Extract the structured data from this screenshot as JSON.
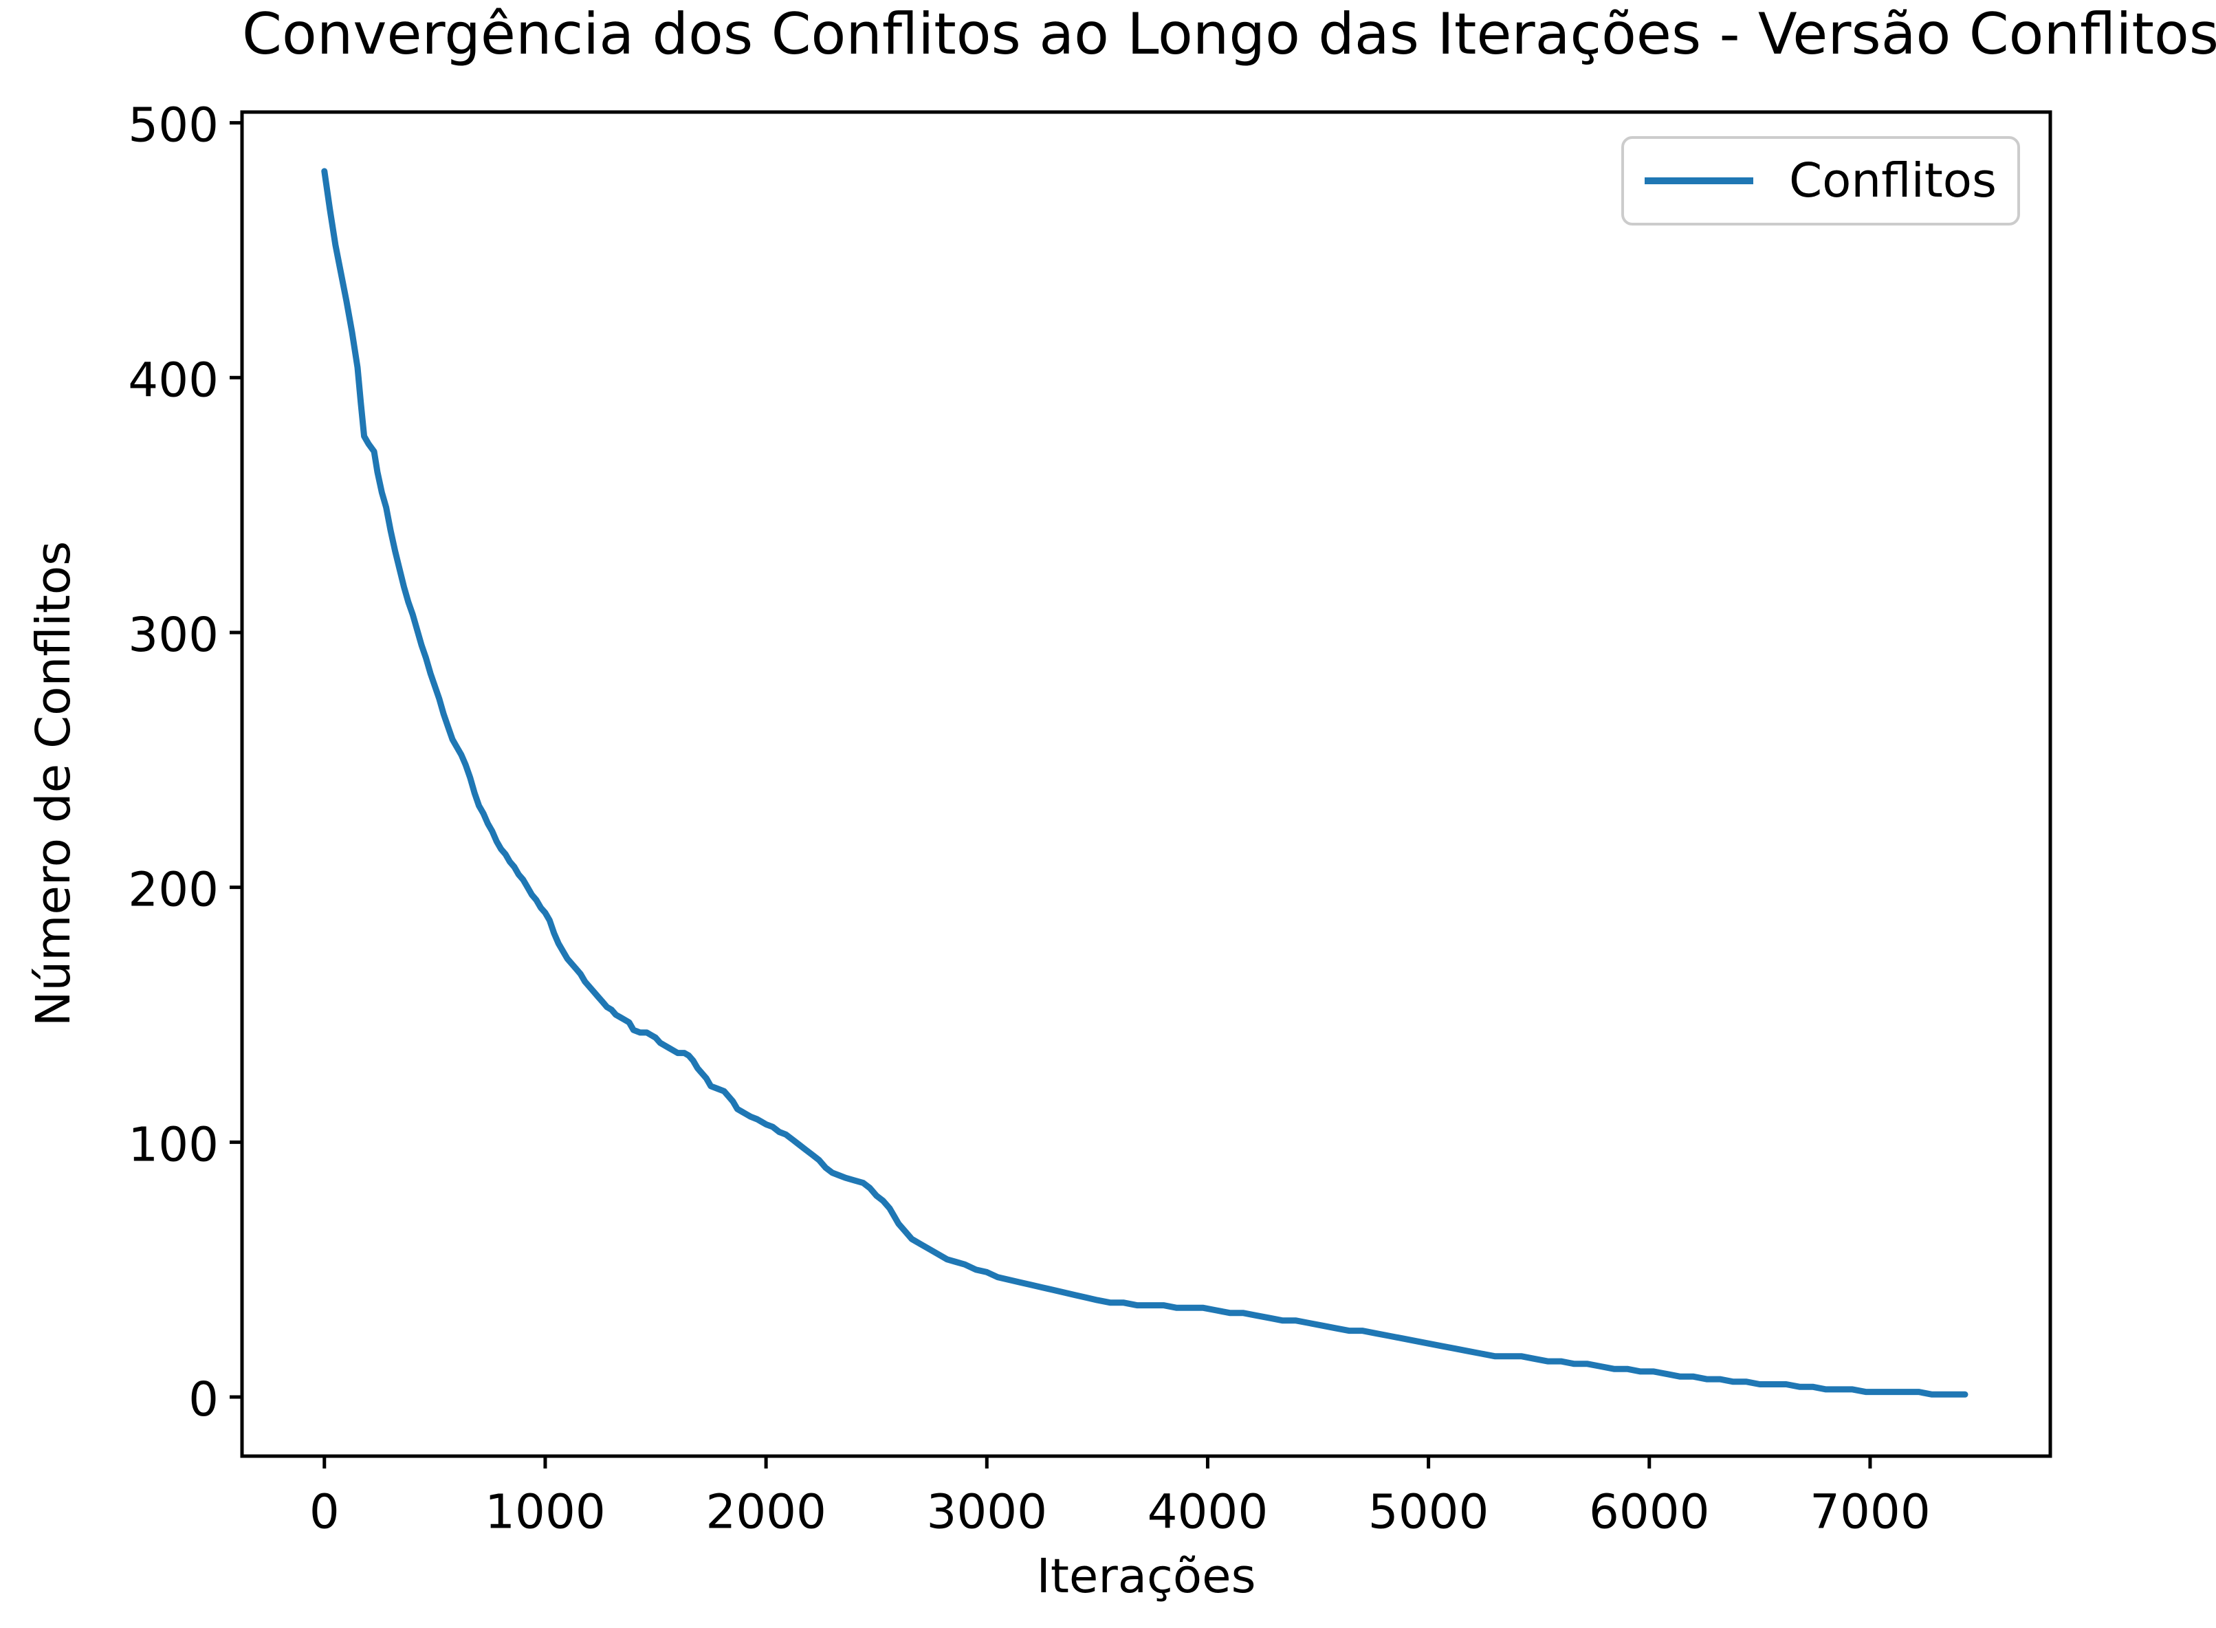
{
  "figure": {
    "background": "#ffffff"
  },
  "chart_data": {
    "type": "line",
    "title": "Convergência dos Conflitos ao Longo das Iterações - Versão Conflitos",
    "xlabel": "Iterações",
    "ylabel": "Número de Conflitos",
    "grid": false,
    "axis_color": "#000000",
    "xlim": [
      -373,
      7816
    ],
    "ylim": [
      -23.2,
      504.2
    ],
    "xticks": [
      0,
      1000,
      2000,
      3000,
      4000,
      5000,
      6000,
      7000
    ],
    "yticks": [
      0,
      100,
      200,
      300,
      400,
      500
    ],
    "legend": {
      "position": "upper right",
      "entries": [
        {
          "label": "Conflitos",
          "color": "#1f77b4"
        }
      ]
    },
    "series": [
      {
        "name": "Conflitos",
        "color": "#1f77b4",
        "line_width": 9,
        "points": [
          [
            0,
            481
          ],
          [
            25,
            466
          ],
          [
            50,
            452
          ],
          [
            75,
            441
          ],
          [
            100,
            430
          ],
          [
            125,
            418
          ],
          [
            150,
            404
          ],
          [
            165,
            390
          ],
          [
            180,
            377
          ],
          [
            200,
            374
          ],
          [
            225,
            371
          ],
          [
            240,
            363
          ],
          [
            260,
            355
          ],
          [
            280,
            349
          ],
          [
            300,
            340
          ],
          [
            320,
            332
          ],
          [
            340,
            325
          ],
          [
            360,
            318
          ],
          [
            380,
            312
          ],
          [
            400,
            307
          ],
          [
            420,
            301
          ],
          [
            440,
            295
          ],
          [
            460,
            290
          ],
          [
            480,
            284
          ],
          [
            500,
            279
          ],
          [
            520,
            274
          ],
          [
            540,
            268
          ],
          [
            560,
            263
          ],
          [
            580,
            258
          ],
          [
            600,
            255
          ],
          [
            620,
            252
          ],
          [
            640,
            248
          ],
          [
            660,
            243
          ],
          [
            680,
            237
          ],
          [
            700,
            232
          ],
          [
            720,
            229
          ],
          [
            740,
            225
          ],
          [
            760,
            222
          ],
          [
            780,
            218
          ],
          [
            800,
            215
          ],
          [
            820,
            213
          ],
          [
            840,
            210
          ],
          [
            860,
            208
          ],
          [
            880,
            205
          ],
          [
            900,
            203
          ],
          [
            920,
            200
          ],
          [
            940,
            197
          ],
          [
            960,
            195
          ],
          [
            980,
            192
          ],
          [
            1000,
            190
          ],
          [
            1020,
            187
          ],
          [
            1040,
            182
          ],
          [
            1060,
            178
          ],
          [
            1080,
            175
          ],
          [
            1100,
            172
          ],
          [
            1120,
            170
          ],
          [
            1140,
            168
          ],
          [
            1160,
            166
          ],
          [
            1180,
            163
          ],
          [
            1200,
            161
          ],
          [
            1220,
            159
          ],
          [
            1240,
            157
          ],
          [
            1260,
            155
          ],
          [
            1280,
            153
          ],
          [
            1300,
            152
          ],
          [
            1320,
            150
          ],
          [
            1340,
            149
          ],
          [
            1360,
            148
          ],
          [
            1380,
            147
          ],
          [
            1400,
            144
          ],
          [
            1430,
            143
          ],
          [
            1460,
            143
          ],
          [
            1480,
            142
          ],
          [
            1500,
            141
          ],
          [
            1520,
            139
          ],
          [
            1540,
            138
          ],
          [
            1560,
            137
          ],
          [
            1580,
            136
          ],
          [
            1600,
            135
          ],
          [
            1630,
            135
          ],
          [
            1650,
            134
          ],
          [
            1670,
            132
          ],
          [
            1690,
            129
          ],
          [
            1710,
            127
          ],
          [
            1730,
            125
          ],
          [
            1750,
            122
          ],
          [
            1780,
            121
          ],
          [
            1810,
            120
          ],
          [
            1830,
            118
          ],
          [
            1850,
            116
          ],
          [
            1870,
            113
          ],
          [
            1890,
            112
          ],
          [
            1910,
            111
          ],
          [
            1930,
            110
          ],
          [
            1960,
            109
          ],
          [
            1980,
            108
          ],
          [
            2000,
            107
          ],
          [
            2030,
            106
          ],
          [
            2060,
            104
          ],
          [
            2090,
            103
          ],
          [
            2120,
            101
          ],
          [
            2150,
            99
          ],
          [
            2180,
            97
          ],
          [
            2210,
            95
          ],
          [
            2240,
            93
          ],
          [
            2270,
            90
          ],
          [
            2300,
            88
          ],
          [
            2330,
            87
          ],
          [
            2360,
            86
          ],
          [
            2400,
            85
          ],
          [
            2440,
            84
          ],
          [
            2470,
            82
          ],
          [
            2500,
            79
          ],
          [
            2530,
            77
          ],
          [
            2560,
            74
          ],
          [
            2580,
            71
          ],
          [
            2600,
            68
          ],
          [
            2630,
            65
          ],
          [
            2660,
            62
          ],
          [
            2700,
            60
          ],
          [
            2740,
            58
          ],
          [
            2780,
            56
          ],
          [
            2820,
            54
          ],
          [
            2860,
            53
          ],
          [
            2900,
            52
          ],
          [
            2950,
            50
          ],
          [
            3000,
            49
          ],
          [
            3050,
            47
          ],
          [
            3100,
            46
          ],
          [
            3150,
            45
          ],
          [
            3200,
            44
          ],
          [
            3250,
            43
          ],
          [
            3300,
            42
          ],
          [
            3350,
            41
          ],
          [
            3400,
            40
          ],
          [
            3450,
            39
          ],
          [
            3500,
            38
          ],
          [
            3560,
            37
          ],
          [
            3620,
            37
          ],
          [
            3680,
            36
          ],
          [
            3740,
            36
          ],
          [
            3800,
            36
          ],
          [
            3860,
            35
          ],
          [
            3920,
            35
          ],
          [
            3980,
            35
          ],
          [
            4040,
            34
          ],
          [
            4100,
            33
          ],
          [
            4160,
            33
          ],
          [
            4220,
            32
          ],
          [
            4280,
            31
          ],
          [
            4340,
            30
          ],
          [
            4400,
            30
          ],
          [
            4460,
            29
          ],
          [
            4520,
            28
          ],
          [
            4580,
            27
          ],
          [
            4640,
            26
          ],
          [
            4700,
            26
          ],
          [
            4760,
            25
          ],
          [
            4820,
            24
          ],
          [
            4880,
            23
          ],
          [
            4940,
            22
          ],
          [
            5000,
            21
          ],
          [
            5060,
            20
          ],
          [
            5120,
            19
          ],
          [
            5180,
            18
          ],
          [
            5240,
            17
          ],
          [
            5300,
            16
          ],
          [
            5360,
            16
          ],
          [
            5420,
            16
          ],
          [
            5480,
            15
          ],
          [
            5540,
            14
          ],
          [
            5600,
            14
          ],
          [
            5660,
            13
          ],
          [
            5720,
            13
          ],
          [
            5780,
            12
          ],
          [
            5840,
            11
          ],
          [
            5900,
            11
          ],
          [
            5960,
            10
          ],
          [
            6020,
            10
          ],
          [
            6080,
            9
          ],
          [
            6140,
            8
          ],
          [
            6200,
            8
          ],
          [
            6260,
            7
          ],
          [
            6320,
            7
          ],
          [
            6380,
            6
          ],
          [
            6440,
            6
          ],
          [
            6500,
            5
          ],
          [
            6560,
            5
          ],
          [
            6620,
            5
          ],
          [
            6680,
            4
          ],
          [
            6740,
            4
          ],
          [
            6800,
            3
          ],
          [
            6860,
            3
          ],
          [
            6920,
            3
          ],
          [
            6980,
            2
          ],
          [
            7040,
            2
          ],
          [
            7100,
            2
          ],
          [
            7160,
            2
          ],
          [
            7220,
            2
          ],
          [
            7280,
            1
          ],
          [
            7340,
            1
          ],
          [
            7400,
            1
          ],
          [
            7430,
            1
          ]
        ]
      }
    ]
  }
}
